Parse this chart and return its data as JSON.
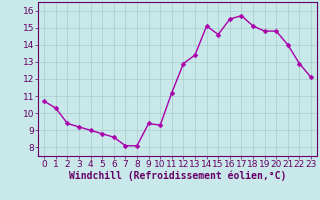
{
  "x": [
    0,
    1,
    2,
    3,
    4,
    5,
    6,
    7,
    8,
    9,
    10,
    11,
    12,
    13,
    14,
    15,
    16,
    17,
    18,
    19,
    20,
    21,
    22,
    23
  ],
  "y": [
    10.7,
    10.3,
    9.4,
    9.2,
    9.0,
    8.8,
    8.6,
    8.1,
    8.1,
    9.4,
    9.3,
    11.2,
    12.9,
    13.4,
    15.1,
    14.6,
    15.5,
    15.7,
    15.1,
    14.8,
    14.8,
    14.0,
    12.9,
    12.1
  ],
  "line_color": "#aa00aa",
  "marker_color": "#aa00aa",
  "bg_color": "#c8e8ea",
  "grid_color": "#aacccc",
  "xlabel": "Windchill (Refroidissement éolien,°C)",
  "xlim": [
    -0.5,
    23.5
  ],
  "ylim": [
    7.5,
    16.5
  ],
  "yticks": [
    8,
    9,
    10,
    11,
    12,
    13,
    14,
    15,
    16
  ],
  "xticks": [
    0,
    1,
    2,
    3,
    4,
    5,
    6,
    7,
    8,
    9,
    10,
    11,
    12,
    13,
    14,
    15,
    16,
    17,
    18,
    19,
    20,
    21,
    22,
    23
  ],
  "tick_color": "#660066",
  "label_color": "#660066",
  "axis_color": "#660066",
  "font_size": 6.5,
  "xlabel_fontsize": 7,
  "marker_size": 2.5,
  "line_width": 1.0
}
